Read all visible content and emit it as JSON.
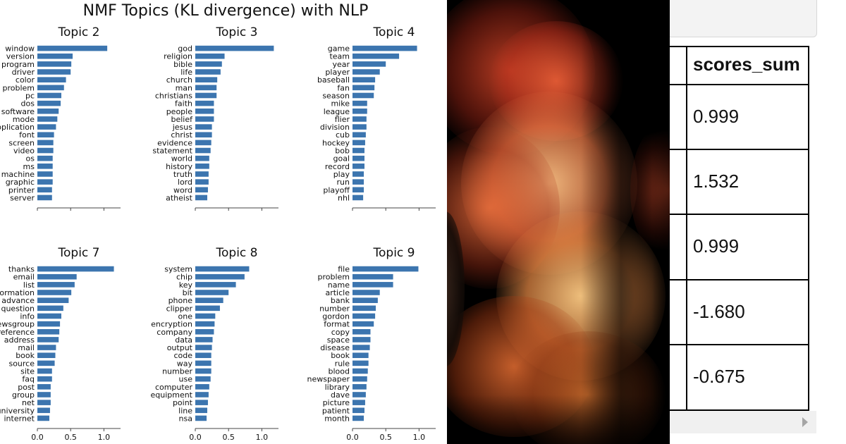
{
  "chart_data": {
    "type": "bar",
    "title": "NMF Topics (KL divergence) with NLP",
    "xlim": [
      0,
      1.25
    ],
    "xticks": [
      0.0,
      0.5,
      1.0
    ],
    "xtick_labels": [
      "0.0",
      "0.5",
      "1.0"
    ],
    "topics": [
      {
        "name": "Topic 2",
        "words": [
          "window",
          "version",
          "program",
          "driver",
          "color",
          "problem",
          "pc",
          "dos",
          "software",
          "mode",
          "application",
          "font",
          "screen",
          "video",
          "os",
          "ms",
          "machine",
          "graphic",
          "printer",
          "server"
        ],
        "values": [
          1.05,
          0.53,
          0.51,
          0.5,
          0.43,
          0.4,
          0.36,
          0.35,
          0.32,
          0.3,
          0.28,
          0.25,
          0.24,
          0.24,
          0.23,
          0.23,
          0.23,
          0.23,
          0.22,
          0.22
        ]
      },
      {
        "name": "Topic 3",
        "words": [
          "god",
          "religion",
          "bible",
          "life",
          "church",
          "man",
          "christians",
          "faith",
          "people",
          "belief",
          "jesus",
          "christ",
          "evidence",
          "statement",
          "world",
          "history",
          "truth",
          "lord",
          "word",
          "atheist"
        ],
        "values": [
          1.18,
          0.44,
          0.4,
          0.38,
          0.33,
          0.32,
          0.32,
          0.28,
          0.28,
          0.28,
          0.25,
          0.25,
          0.24,
          0.23,
          0.21,
          0.21,
          0.2,
          0.2,
          0.19,
          0.18
        ]
      },
      {
        "name": "Topic 4",
        "words": [
          "game",
          "team",
          "year",
          "player",
          "baseball",
          "fan",
          "season",
          "mike",
          "league",
          "flier",
          "division",
          "cub",
          "hockey",
          "bob",
          "goal",
          "record",
          "play",
          "run",
          "playoff",
          "nhl"
        ],
        "values": [
          0.97,
          0.7,
          0.5,
          0.41,
          0.34,
          0.33,
          0.32,
          0.22,
          0.22,
          0.21,
          0.21,
          0.2,
          0.19,
          0.18,
          0.18,
          0.18,
          0.17,
          0.17,
          0.17,
          0.16
        ]
      },
      {
        "name": "Topic 7",
        "words": [
          "thanks",
          "email",
          "list",
          "information",
          "advance",
          "question",
          "info",
          "newsgroup",
          "reference",
          "address",
          "mail",
          "book",
          "source",
          "site",
          "faq",
          "post",
          "group",
          "net",
          "university",
          "internet"
        ],
        "values": [
          1.15,
          0.59,
          0.56,
          0.51,
          0.47,
          0.39,
          0.36,
          0.34,
          0.33,
          0.32,
          0.28,
          0.27,
          0.26,
          0.22,
          0.22,
          0.2,
          0.2,
          0.2,
          0.19,
          0.18
        ]
      },
      {
        "name": "Topic 8",
        "words": [
          "system",
          "chip",
          "key",
          "bit",
          "phone",
          "clipper",
          "one",
          "encryption",
          "company",
          "data",
          "output",
          "code",
          "way",
          "number",
          "use",
          "computer",
          "equipment",
          "point",
          "line",
          "nsa"
        ],
        "values": [
          0.81,
          0.74,
          0.61,
          0.5,
          0.42,
          0.37,
          0.3,
          0.29,
          0.28,
          0.26,
          0.25,
          0.24,
          0.24,
          0.24,
          0.23,
          0.21,
          0.2,
          0.19,
          0.18,
          0.17
        ]
      },
      {
        "name": "Topic 9",
        "words": [
          "file",
          "problem",
          "name",
          "article",
          "bank",
          "number",
          "gordon",
          "format",
          "copy",
          "space",
          "disease",
          "book",
          "rule",
          "blood",
          "newspaper",
          "library",
          "dave",
          "picture",
          "patient",
          "month"
        ],
        "values": [
          0.99,
          0.61,
          0.61,
          0.41,
          0.38,
          0.35,
          0.34,
          0.32,
          0.27,
          0.27,
          0.26,
          0.24,
          0.24,
          0.23,
          0.22,
          0.21,
          0.2,
          0.19,
          0.18,
          0.17
        ]
      }
    ],
    "bar_color": "#3c75af"
  },
  "table": {
    "header": "scores_sum",
    "values": [
      "0.999",
      "1.532",
      "0.999",
      "-1.680",
      "-0.675"
    ]
  },
  "icons": {
    "scroll_right": "scroll-right-arrow-icon"
  }
}
